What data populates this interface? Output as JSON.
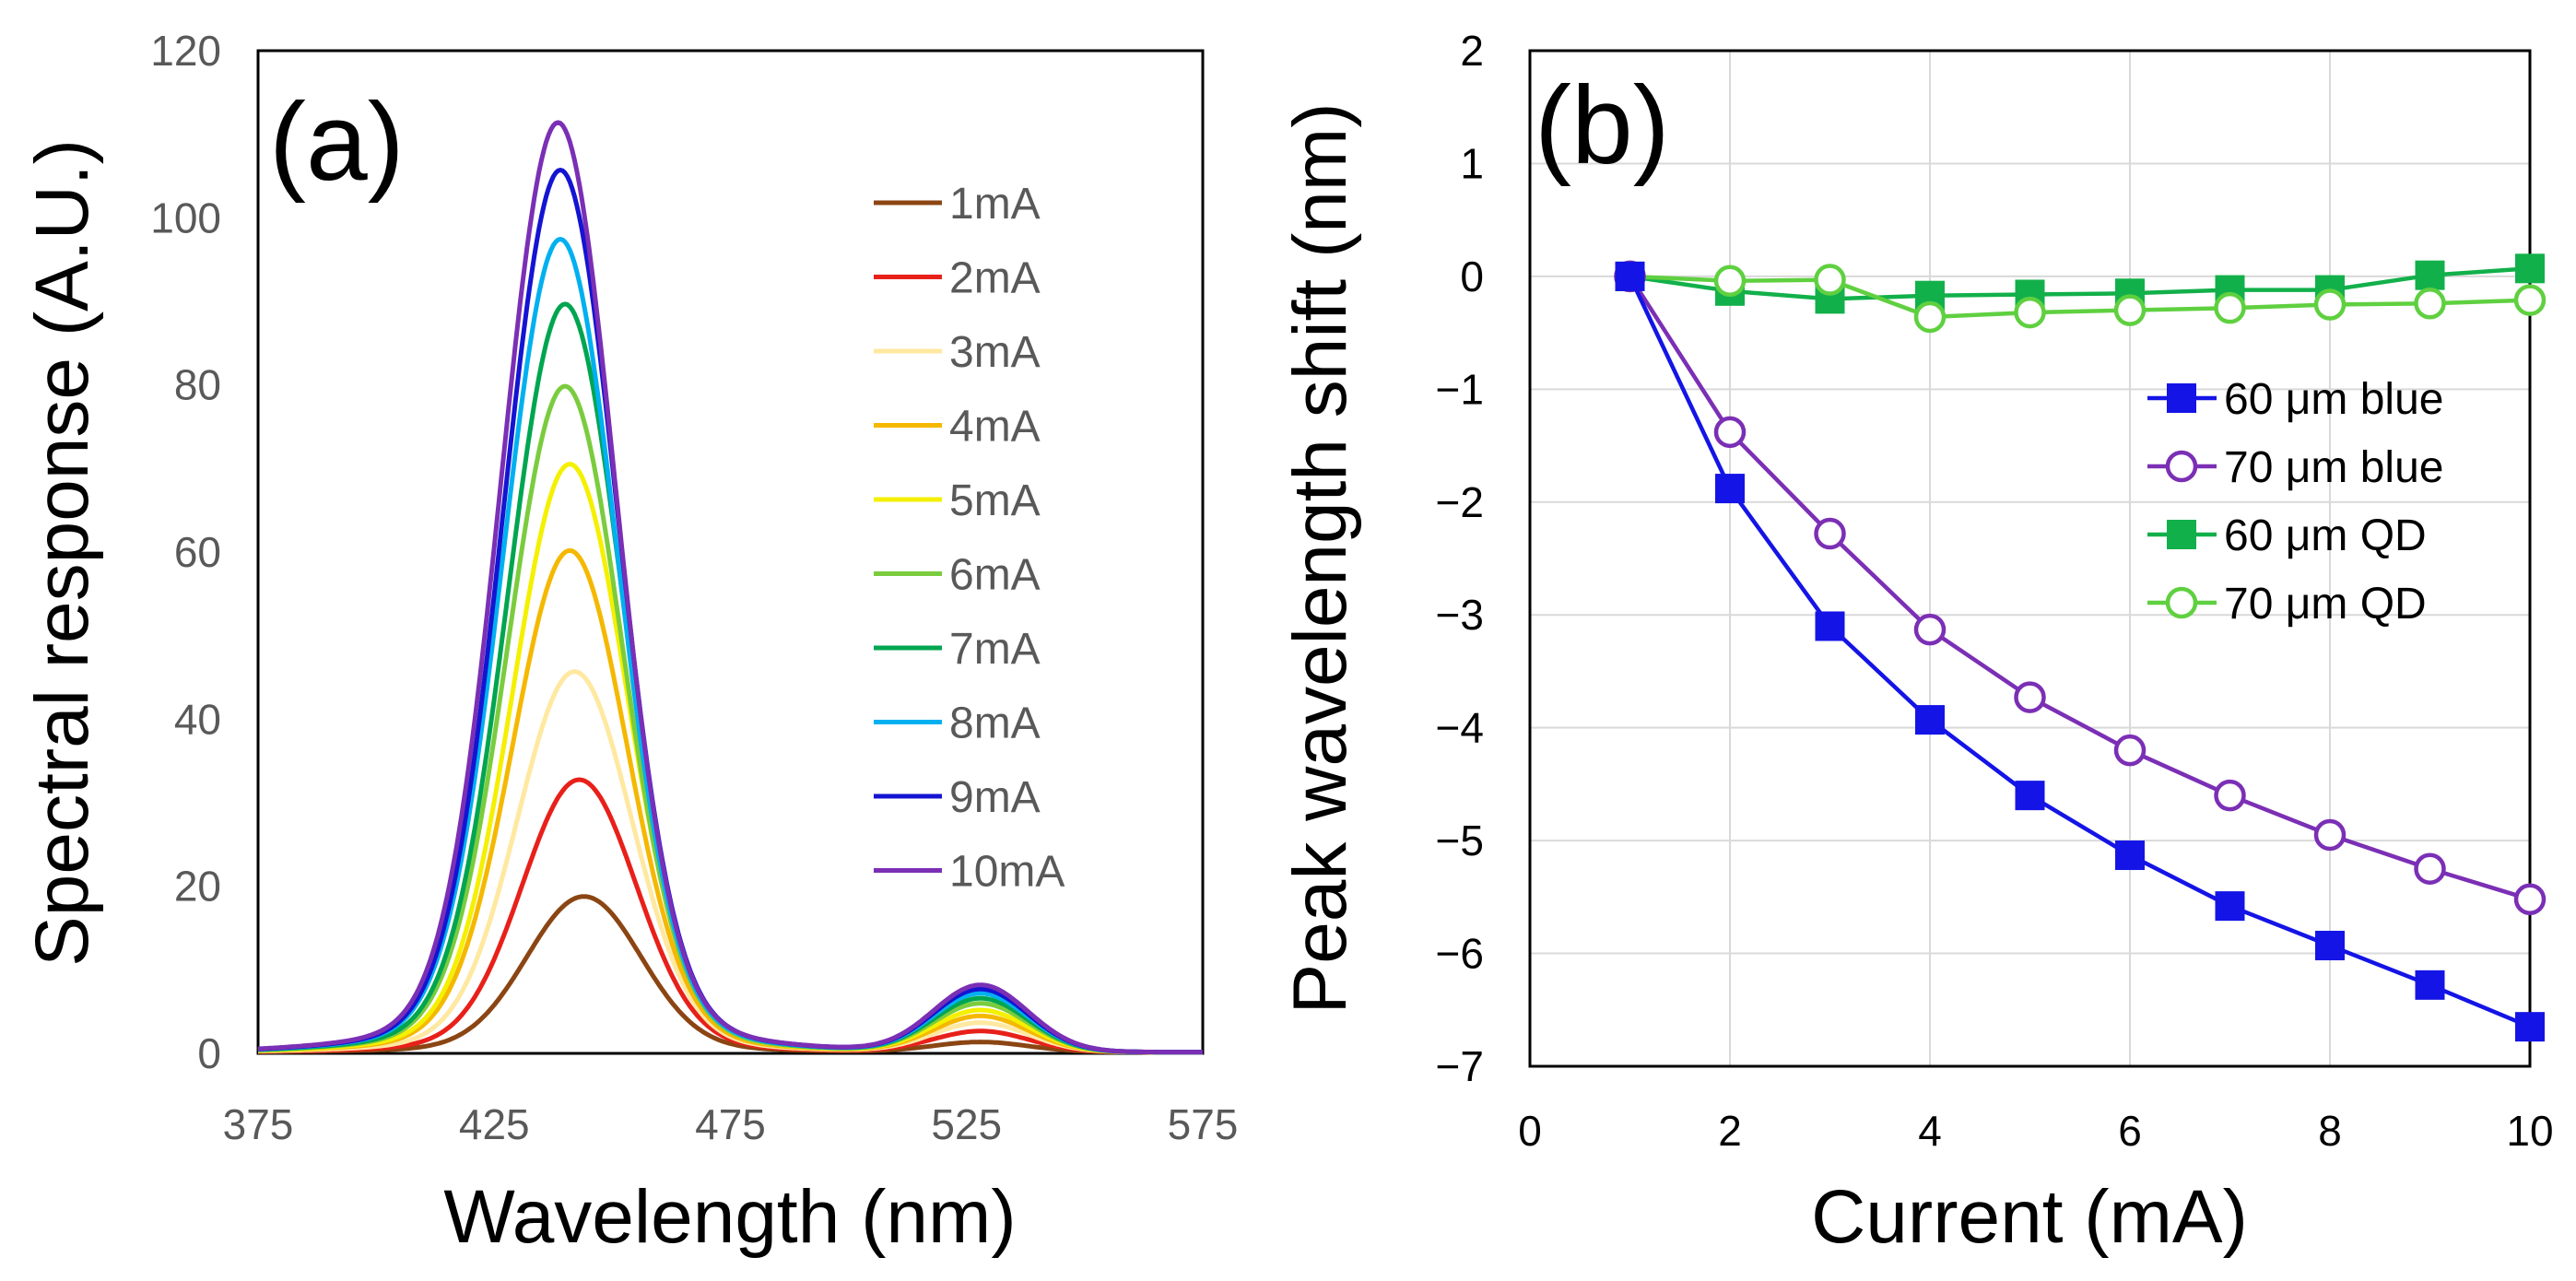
{
  "chart_data": [
    {
      "type": "line",
      "panel_label": "(a)",
      "xlabel": "Wavelength (nm)",
      "ylabel": "Spectral response (A.U.)",
      "xlim": [
        375,
        575
      ],
      "ylim": [
        0,
        120
      ],
      "x_ticks": [
        "375",
        "425",
        "475",
        "525",
        "575"
      ],
      "y_ticks": [
        "0",
        "20",
        "40",
        "60",
        "80",
        "100",
        "120"
      ],
      "grid": false,
      "legend_position": "right",
      "series": [
        {
          "name": "1mA",
          "color": "#8B4513",
          "peak1_x": 444,
          "peak1_y": 18,
          "peak2_y": 1.2
        },
        {
          "name": "2mA",
          "color": "#E8201A",
          "peak1_x": 443,
          "peak1_y": 31.5,
          "peak2_y": 2.5
        },
        {
          "name": "3mA",
          "color": "#FFE8A0",
          "peak1_x": 442,
          "peak1_y": 44,
          "peak2_y": 3.5
        },
        {
          "name": "4mA",
          "color": "#F5B800",
          "peak1_x": 441,
          "peak1_y": 58,
          "peak2_y": 4.3
        },
        {
          "name": "5mA",
          "color": "#F4F000",
          "peak1_x": 441,
          "peak1_y": 68,
          "peak2_y": 5.0
        },
        {
          "name": "6mA",
          "color": "#7ACC3E",
          "peak1_x": 440,
          "peak1_y": 77,
          "peak2_y": 5.8
        },
        {
          "name": "7mA",
          "color": "#00A550",
          "peak1_x": 440,
          "peak1_y": 86.5,
          "peak2_y": 6.4
        },
        {
          "name": "8mA",
          "color": "#00B0F0",
          "peak1_x": 439,
          "peak1_y": 94,
          "peak2_y": 7.0
        },
        {
          "name": "9mA",
          "color": "#1414D2",
          "peak1_x": 439,
          "peak1_y": 102,
          "peak2_y": 7.5
        },
        {
          "name": "10mA",
          "color": "#7B2FB5",
          "peak1_x": 438.5,
          "peak1_y": 107.5,
          "peak2_y": 8.0
        }
      ],
      "peak2_x": 528
    },
    {
      "type": "line",
      "panel_label": "(b)",
      "xlabel": "Current (mA)",
      "ylabel": "Peak wavelength shift (nm)",
      "xlim": [
        0,
        10
      ],
      "ylim": [
        -7,
        2
      ],
      "x_ticks": [
        "0",
        "2",
        "4",
        "6",
        "8",
        "10"
      ],
      "y_ticks": [
        "−7",
        "−6",
        "−5",
        "−4",
        "−3",
        "−2",
        "−1",
        "0",
        "1",
        "2"
      ],
      "grid": true,
      "legend_position": "right",
      "x": [
        1,
        2,
        3,
        4,
        5,
        6,
        7,
        8,
        9,
        10
      ],
      "series": [
        {
          "name": "60 μm blue",
          "color": "#1414E6",
          "marker": "filled-square",
          "values": [
            0,
            -1.88,
            -3.1,
            -3.93,
            -4.6,
            -5.13,
            -5.58,
            -5.93,
            -6.28,
            -6.65
          ]
        },
        {
          "name": "70 μm blue",
          "color": "#7B2FB5",
          "marker": "open-circle",
          "values": [
            0,
            -1.38,
            -2.28,
            -3.13,
            -3.73,
            -4.2,
            -4.6,
            -4.95,
            -5.25,
            -5.52
          ]
        },
        {
          "name": "60 μm QD",
          "color": "#12B04A",
          "marker": "filled-square",
          "values": [
            0,
            -0.13,
            -0.2,
            -0.17,
            -0.16,
            -0.15,
            -0.12,
            -0.12,
            0.01,
            0.07
          ]
        },
        {
          "name": "70 μm QD",
          "color": "#5FD040",
          "marker": "open-circle",
          "values": [
            0,
            -0.04,
            -0.03,
            -0.36,
            -0.32,
            -0.3,
            -0.28,
            -0.25,
            -0.24,
            -0.21
          ]
        }
      ]
    }
  ]
}
